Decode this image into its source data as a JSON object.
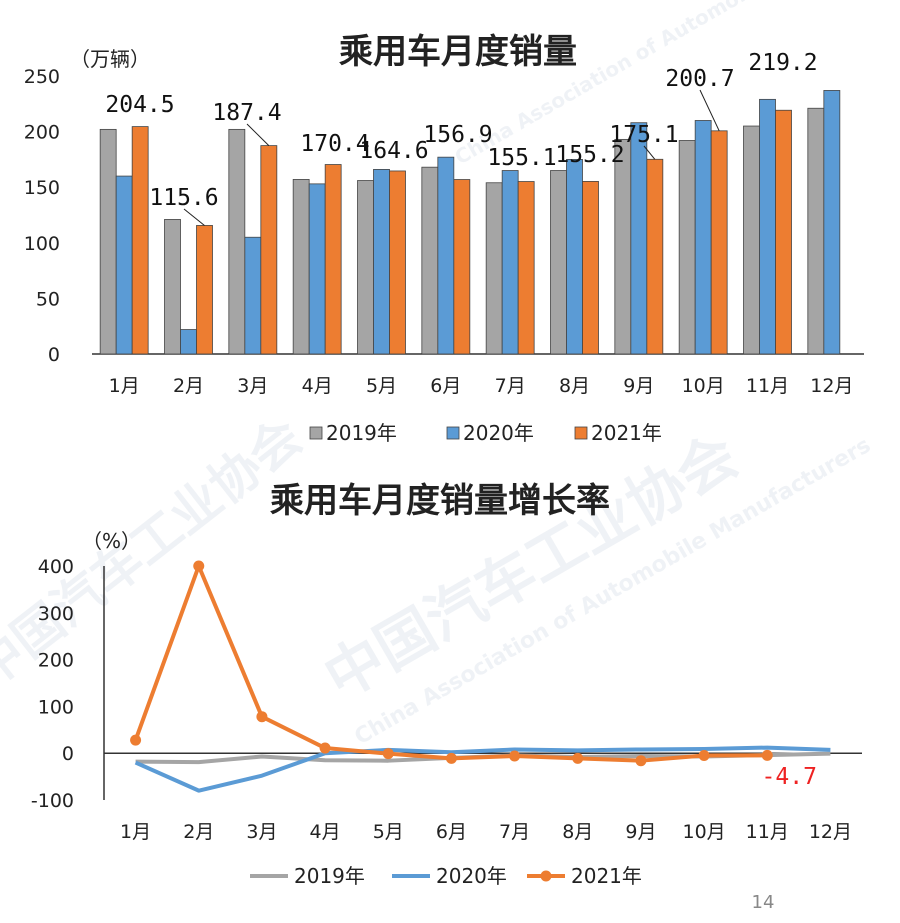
{
  "colors": {
    "y2019": "#a5a5a5",
    "y2020": "#5b9bd5",
    "y2021": "#ed7d31",
    "negative_label": "#ee2222"
  },
  "watermark": {
    "text_cn": "中国汽车工业协会",
    "text_en": "China Association of Automobile Manufacturers"
  },
  "page_number": "14",
  "chart_data": [
    {
      "type": "bar",
      "title": "乘用车月度销量",
      "unit_label": "（万辆）",
      "categories": [
        "1月",
        "2月",
        "3月",
        "4月",
        "5月",
        "6月",
        "7月",
        "8月",
        "9月",
        "10月",
        "11月",
        "12月"
      ],
      "ylim": [
        0,
        250
      ],
      "yticks": [
        0,
        50,
        100,
        150,
        200,
        250
      ],
      "series": [
        {
          "name": "2019年",
          "key": "y2019",
          "values": [
            202,
            121,
            202,
            157,
            156,
            168,
            154,
            165,
            193,
            192,
            205,
            221
          ]
        },
        {
          "name": "2020年",
          "key": "y2020",
          "values": [
            160,
            22,
            105,
            153,
            166,
            177,
            165,
            175,
            208,
            210,
            229,
            237
          ]
        },
        {
          "name": "2021年",
          "key": "y2021",
          "values": [
            204.5,
            115.6,
            187.4,
            170.4,
            164.6,
            156.9,
            155.1,
            155.2,
            175.1,
            200.7,
            219.2,
            null
          ]
        }
      ],
      "data_labels": [
        {
          "cat": 0,
          "text": "204.5"
        },
        {
          "cat": 1,
          "text": "115.6"
        },
        {
          "cat": 2,
          "text": "187.4"
        },
        {
          "cat": 3,
          "text": "170.4"
        },
        {
          "cat": 4,
          "text": "164.6"
        },
        {
          "cat": 5,
          "text": "156.9"
        },
        {
          "cat": 6,
          "text": "155.1"
        },
        {
          "cat": 7,
          "text": "155.2"
        },
        {
          "cat": 8,
          "text": "175.1"
        },
        {
          "cat": 9,
          "text": "200.7"
        },
        {
          "cat": 10,
          "text": "219.2"
        }
      ],
      "legend": [
        "2019年",
        "2020年",
        "2021年"
      ],
      "legend_position": "bottom"
    },
    {
      "type": "line",
      "title": "乘用车月度销量增长率",
      "unit_label": "（%）",
      "categories": [
        "1月",
        "2月",
        "3月",
        "4月",
        "5月",
        "6月",
        "7月",
        "8月",
        "9月",
        "10月",
        "11月",
        "12月"
      ],
      "ylim": [
        -100,
        400
      ],
      "yticks": [
        -100,
        0,
        100,
        200,
        300,
        400
      ],
      "series": [
        {
          "name": "2019年",
          "key": "y2019",
          "values": [
            -18,
            -19,
            -7,
            -15,
            -16,
            -10,
            -5,
            -8,
            -6,
            -7,
            -4,
            -1
          ]
        },
        {
          "name": "2020年",
          "key": "y2020",
          "values": [
            -20,
            -80,
            -48,
            0,
            7,
            2,
            8,
            6,
            8,
            9,
            12,
            7
          ]
        },
        {
          "name": "2021年",
          "key": "y2021",
          "values": [
            28,
            400,
            78,
            11,
            -1,
            -11,
            -6,
            -11,
            -16,
            -5,
            -4.7,
            null
          ]
        }
      ],
      "data_labels": [
        {
          "cat": 10,
          "text": "-4.7"
        }
      ],
      "legend": [
        "2019年",
        "2020年",
        "2021年"
      ],
      "legend_position": "bottom"
    }
  ]
}
